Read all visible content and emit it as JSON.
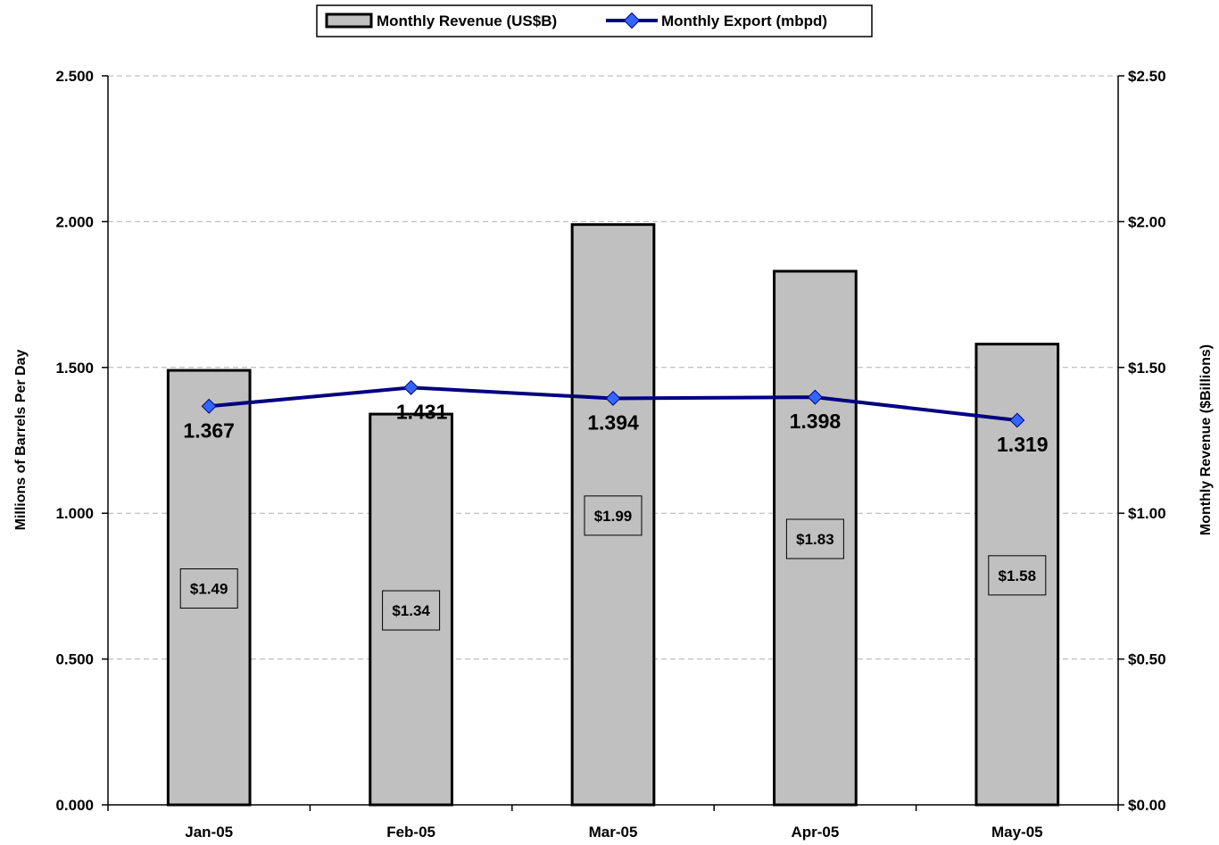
{
  "chart_data": {
    "type": "bar",
    "categories": [
      "Jan-05",
      "Feb-05",
      "Mar-05",
      "Apr-05",
      "May-05"
    ],
    "series": [
      {
        "name": "Monthly Revenue (US$B)",
        "kind": "bar",
        "axis": "right",
        "values": [
          1.49,
          1.34,
          1.99,
          1.83,
          1.58
        ],
        "labels": [
          "$1.49",
          "$1.34",
          "$1.99",
          "$1.83",
          "$1.58"
        ],
        "color": "#c0c0c0"
      },
      {
        "name": "Monthly Export (mbpd)",
        "kind": "line",
        "axis": "left",
        "values": [
          1.367,
          1.431,
          1.394,
          1.398,
          1.319
        ],
        "labels": [
          "1.367",
          "1.431",
          "1.394",
          "1.398",
          "1.319"
        ],
        "color": "#000080",
        "marker_color": "#3366ff"
      }
    ],
    "ylabel": "Millions of Barrels Per Day",
    "y2label": "Monthly Revenue ($Billions)",
    "ylim": [
      0,
      2.5
    ],
    "y2lim": [
      0,
      2.5
    ],
    "yticks": [
      "0.000",
      "0.500",
      "1.000",
      "1.500",
      "2.000",
      "2.500"
    ],
    "y2ticks": [
      "$0.00",
      "$0.50",
      "$1.00",
      "$1.50",
      "$2.00",
      "$2.50"
    ],
    "grid": true,
    "legend_position": "top"
  }
}
